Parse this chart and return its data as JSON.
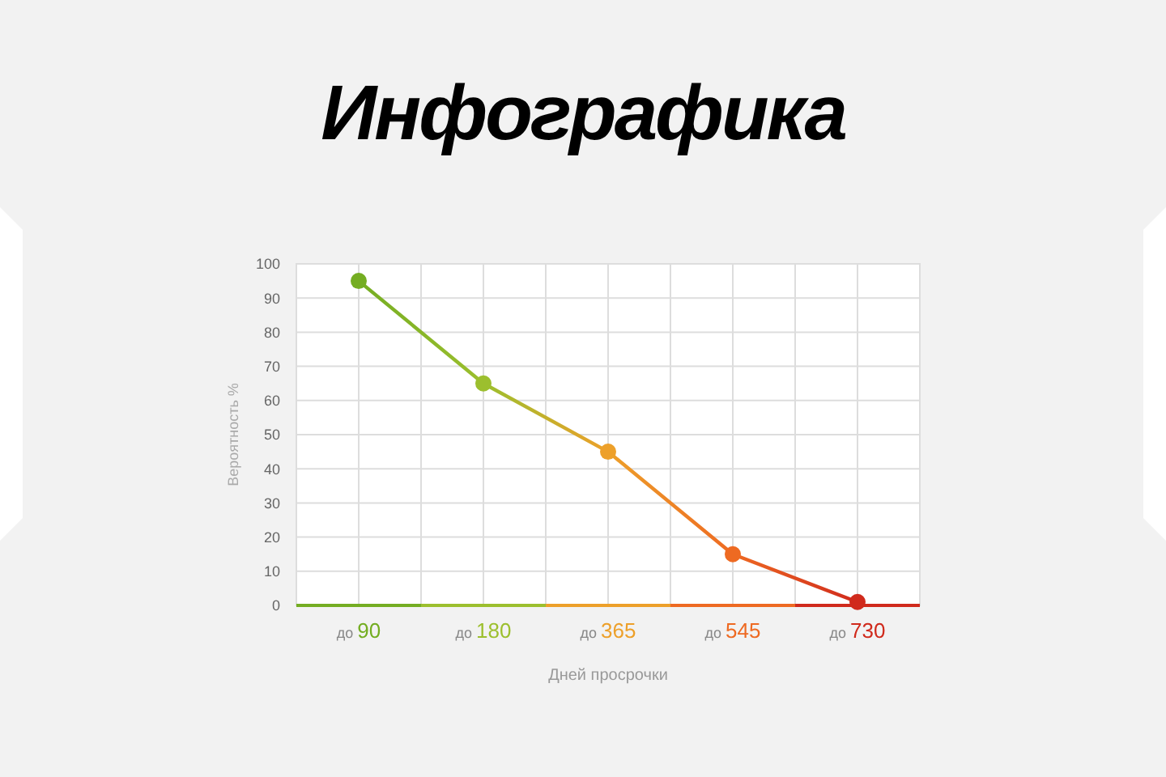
{
  "chart_data": {
    "type": "line",
    "title": "Инфографика",
    "xlabel": "Дней просрочки",
    "ylabel": "Вероятность %",
    "categories": [
      "до 90",
      "до 180",
      "до 365",
      "до 545",
      "до 730"
    ],
    "series": [
      {
        "colors": [
          "#74ad22",
          "#9cbf2e",
          "#eda02a",
          "#ee6a22",
          "#d02a1c"
        ],
        "values": [
          95,
          65,
          45,
          15,
          1
        ]
      }
    ],
    "ylim": [
      0,
      100
    ],
    "yticks": [
      0,
      10,
      20,
      30,
      40,
      50,
      60,
      70,
      80,
      90,
      100
    ],
    "grid": true,
    "marker": "circle",
    "line_style": "solid"
  }
}
